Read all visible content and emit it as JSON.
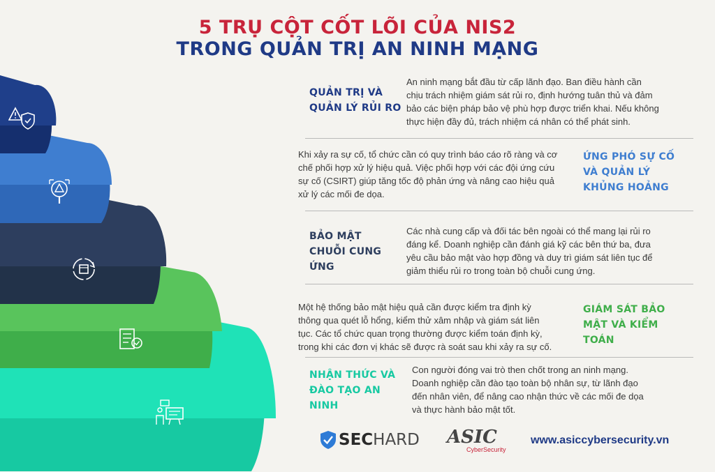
{
  "title": {
    "line1": "5 TRỤ CỘT CỐT LÕI CỦA NIS2",
    "line2": "TRONG QUẢN TRỊ AN NINH MẠNG"
  },
  "colors": {
    "title_red": "#c8243a",
    "title_blue": "#1f3a86",
    "tier1": "#1f3f8a",
    "tier2": "#3f7ed0",
    "tier3": "#2d3e5e",
    "tier4": "#59c45c",
    "tier5": "#1fe2b7"
  },
  "pillars": [
    {
      "heading_lines": [
        "QUẢN TRỊ VÀ",
        "QUẢN LÝ RỦI RO"
      ],
      "color": "#1f3a86",
      "icon": "shield-warning-icon",
      "text_lines": [
        "An ninh mạng bắt đầu từ cấp lãnh đạo. Ban điều hành cần",
        "chịu trách nhiệm giám sát rủi ro, định hướng tuân thủ và đảm",
        "bảo các biện pháp bảo vệ phù hợp được triển khai. Nếu không",
        "thực hiện đầy đủ, trách nhiệm cá nhân có thể phát sinh."
      ]
    },
    {
      "heading_lines": [
        "ỨNG PHÓ SỰ CỐ",
        "VÀ QUẢN LÝ",
        "KHỦNG HOẢNG"
      ],
      "color": "#3f7ed0",
      "icon": "alert-magnifier-icon",
      "text_lines": [
        "Khi xảy ra sự cố, tổ chức cần có quy trình báo cáo rõ ràng và cơ",
        "chế phối hợp xử lý hiệu quả. Việc phối hợp với các đội ứng cứu",
        "sự cố (CSIRT) giúp tăng tốc độ phản ứng và nâng cao hiệu quả",
        "xử lý các mối đe dọa."
      ]
    },
    {
      "heading_lines": [
        "BẢO MẬT",
        "CHUỖI CUNG",
        "ỨNG"
      ],
      "color": "#2d3e5e",
      "icon": "supply-chain-cycle-icon",
      "text_lines": [
        "Các nhà cung cấp và đối tác bên ngoài có thể mang lại rủi ro",
        "đáng kể. Doanh nghiệp cần đánh giá kỹ các bên thứ ba, đưa",
        "yêu cầu bảo mật vào hợp đồng và duy trì giám sát liên tục để",
        "giảm thiểu rủi ro trong toàn bộ chuỗi cung ứng."
      ]
    },
    {
      "heading_lines": [
        "GIÁM SÁT BẢO",
        "MẬT VÀ KIỂM",
        "TOÁN"
      ],
      "color": "#3fae4a",
      "icon": "audit-checklist-icon",
      "text_lines": [
        "Một hệ thống bảo mật hiệu quả cần được kiểm tra định kỳ",
        "thông qua quét lỗ hổng, kiểm thử xâm nhập và giám sát liên",
        "tục. Các tổ chức quan trọng thường được kiểm toán định kỳ,",
        "trong khi các đơn vị khác sẽ được rà soát sau khi xảy ra sự cố."
      ]
    },
    {
      "heading_lines": [
        "NHẬN THỨC VÀ",
        "ĐÀO TẠO AN",
        "NINH"
      ],
      "color": "#17c9a2",
      "icon": "training-presentation-icon",
      "text_lines": [
        "Con người đóng vai trò then chốt trong an ninh mạng.",
        "Doanh nghiệp cần đào tạo toàn bộ nhân sự, từ lãnh đạo",
        "đến nhân viên, để nâng cao nhận thức về các mối đe dọa",
        "và thực hành bảo mật tốt."
      ]
    }
  ],
  "footer": {
    "sechard_part1": "SEC",
    "sechard_part2": "HARD",
    "asic_logo": "ASIC",
    "asic_sub": "CyberSecurity",
    "website": "www.asiccybersecurity.vn"
  }
}
